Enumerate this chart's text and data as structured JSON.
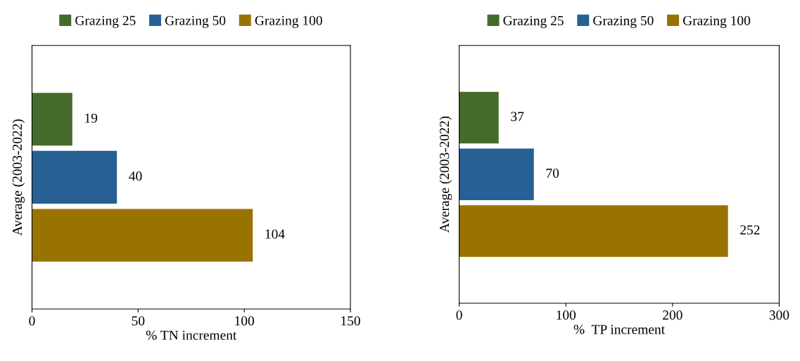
{
  "chart_data": [
    {
      "type": "bar",
      "orientation": "horizontal",
      "categories": [
        null
      ],
      "ylabel": "Average (2003-2022)",
      "xlabel": "% TN increment",
      "xlim": [
        0,
        150
      ],
      "xticks": [
        0,
        50,
        100,
        150
      ],
      "data_labels": true,
      "legend": "top",
      "grid": false,
      "series": [
        {
          "name": "Grazing 25",
          "color": "#456b2c",
          "values": [
            19
          ]
        },
        {
          "name": "Grazing 50",
          "color": "#276094",
          "values": [
            40
          ]
        },
        {
          "name": "Grazing 100",
          "color": "#997300",
          "values": [
            104
          ]
        }
      ]
    },
    {
      "type": "bar",
      "orientation": "horizontal",
      "categories": [
        null
      ],
      "ylabel": "Average (2003-2022)",
      "xlabel": "%  TP increment",
      "xlim": [
        0,
        300
      ],
      "xticks": [
        0,
        100,
        200,
        300
      ],
      "data_labels": true,
      "legend": "top",
      "grid": false,
      "series": [
        {
          "name": "Grazing 25",
          "color": "#456b2c",
          "values": [
            37
          ]
        },
        {
          "name": "Grazing 50",
          "color": "#276094",
          "values": [
            70
          ]
        },
        {
          "name": "Grazing 100",
          "color": "#997300",
          "values": [
            252
          ]
        }
      ]
    }
  ]
}
